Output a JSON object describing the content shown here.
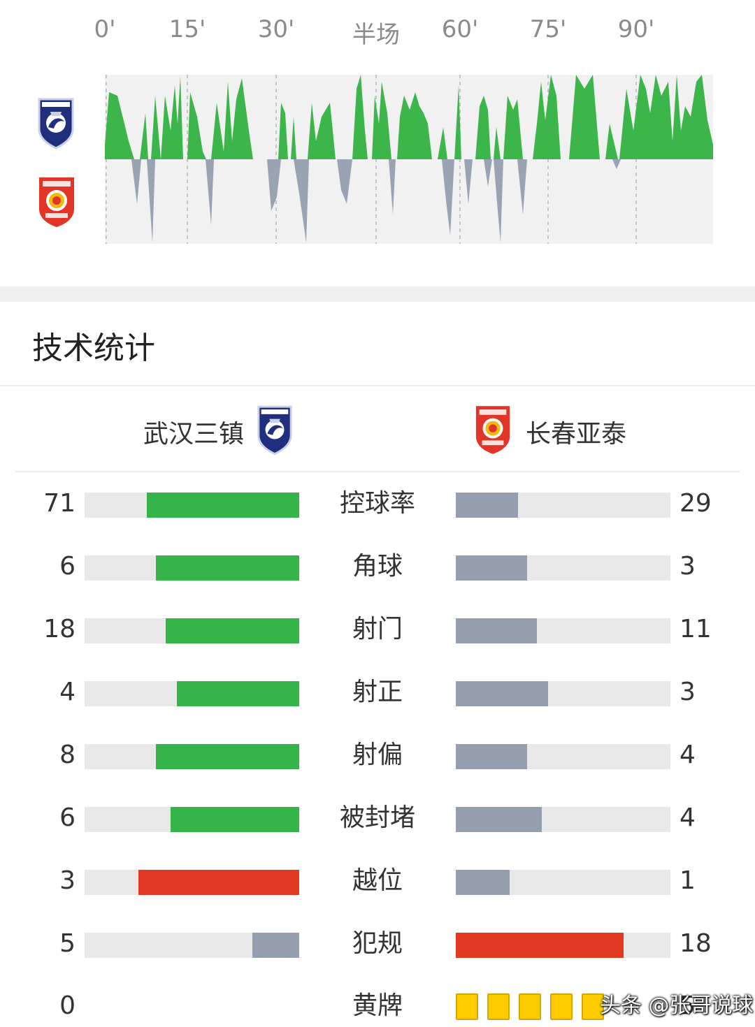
{
  "timeline": {
    "ticks": [
      "0'",
      "15'",
      "30'",
      "半场",
      "60'",
      "75'",
      "90'"
    ],
    "home_color": "#3cb54a",
    "away_color": "#99a3b3"
  },
  "section_title": "技术统计",
  "teams": {
    "home": "武汉三镇",
    "away": "长春亚泰"
  },
  "colors": {
    "green": "#35b44a",
    "gray": "#959eae",
    "red": "#e23a22",
    "track": "#e8e8e8"
  },
  "stats": [
    {
      "label": "控球率",
      "home": "71",
      "away": "29",
      "home_color": "green",
      "away_color": "gray"
    },
    {
      "label": "角球",
      "home": "6",
      "away": "3",
      "home_color": "green",
      "away_color": "gray"
    },
    {
      "label": "射门",
      "home": "18",
      "away": "11",
      "home_color": "green",
      "away_color": "gray"
    },
    {
      "label": "射正",
      "home": "4",
      "away": "3",
      "home_color": "green",
      "away_color": "gray"
    },
    {
      "label": "射偏",
      "home": "8",
      "away": "4",
      "home_color": "green",
      "away_color": "gray"
    },
    {
      "label": "被封堵",
      "home": "6",
      "away": "4",
      "home_color": "green",
      "away_color": "gray"
    },
    {
      "label": "越位",
      "home": "3",
      "away": "1",
      "home_color": "red",
      "away_color": "gray"
    },
    {
      "label": "犯规",
      "home": "5",
      "away": "18",
      "home_color": "gray",
      "away_color": "red"
    }
  ],
  "yellow": {
    "label": "黄牌",
    "home": "0",
    "away": "5",
    "away_cards": 5
  },
  "watermark": "头条 @张哥说球"
}
